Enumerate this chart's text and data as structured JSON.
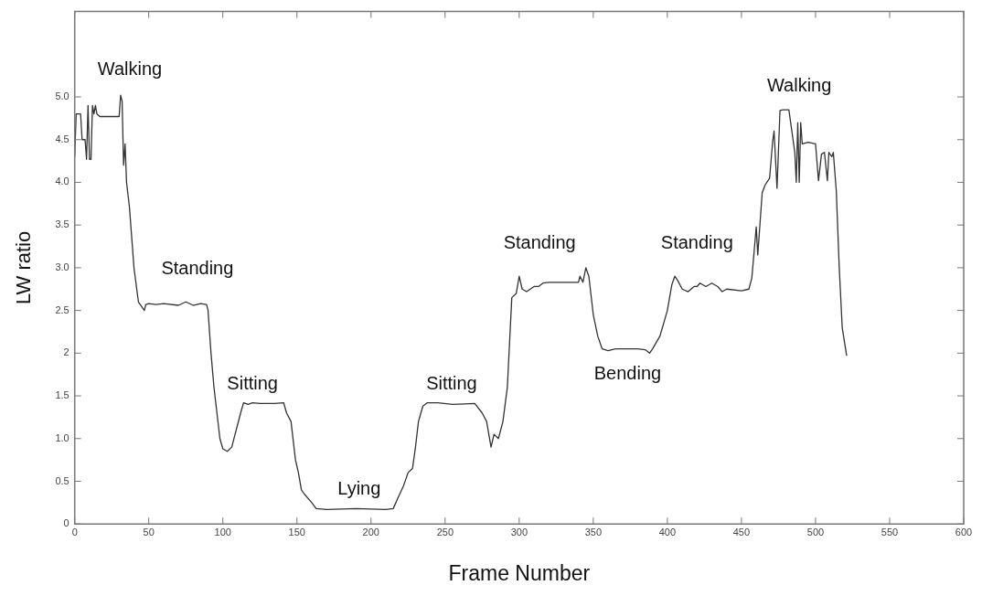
{
  "chart_data": {
    "type": "line",
    "xlabel": "Frame Number",
    "ylabel": "LW ratio",
    "xlim": [
      0,
      600
    ],
    "xticks": [
      0,
      50,
      100,
      150,
      200,
      250,
      300,
      350,
      400,
      450,
      500,
      550,
      600
    ],
    "ylim": [
      0,
      6
    ],
    "yticks": [
      0,
      0.5,
      {
        "value": 1,
        "label": "1.0"
      },
      1.5,
      2,
      2.5,
      {
        "value": 3,
        "label": "3.0"
      },
      3.5,
      {
        "value": 4,
        "label": "4.0"
      },
      4.5,
      {
        "value": 5,
        "label": "5.0"
      }
    ],
    "grid": false,
    "legend": false,
    "marker": "none",
    "line_style": "solid",
    "series": [
      {
        "color": "#333333",
        "x": [
          0,
          1,
          4,
          5,
          7,
          8,
          9,
          10,
          11,
          12,
          13,
          14,
          15,
          17,
          30,
          31,
          32,
          33,
          34,
          35,
          37,
          40,
          43,
          45,
          47,
          48,
          50,
          55,
          60,
          70,
          75,
          80,
          85,
          89,
          90,
          92,
          94,
          96,
          98,
          100,
          103,
          106,
          109,
          112,
          114,
          117,
          120,
          125,
          135,
          141,
          143,
          146,
          149,
          151,
          153,
          155,
          160,
          163,
          170,
          190,
          210,
          215,
          218,
          222,
          225,
          228,
          230,
          232,
          235,
          238,
          245,
          255,
          270,
          275,
          278,
          281,
          283,
          286,
          289,
          292,
          294,
          295,
          298,
          300,
          302,
          305,
          310,
          313,
          316,
          320,
          340,
          341,
          343,
          345,
          347,
          350,
          353,
          356,
          360,
          365,
          380,
          385,
          388,
          390,
          395,
          400,
          403,
          405,
          407,
          410,
          414,
          418,
          420,
          422,
          426,
          430,
          434,
          437,
          440,
          450,
          455,
          457,
          460,
          461,
          464,
          466,
          469,
          471,
          472,
          474,
          476,
          478,
          482,
          484,
          486,
          487,
          488,
          489,
          490,
          491,
          495,
          500,
          502,
          504,
          506,
          508,
          509,
          511,
          512,
          514,
          516,
          518,
          521
        ],
        "values": [
          4.3,
          4.8,
          4.8,
          4.5,
          4.5,
          4.27,
          4.9,
          4.27,
          4.27,
          4.9,
          4.8,
          4.9,
          4.8,
          4.77,
          4.77,
          5.02,
          4.95,
          4.2,
          4.45,
          4.0,
          3.7,
          3.0,
          2.6,
          2.55,
          2.5,
          2.57,
          2.58,
          2.57,
          2.58,
          2.56,
          2.6,
          2.56,
          2.58,
          2.57,
          2.5,
          2.0,
          1.6,
          1.3,
          1.0,
          0.88,
          0.85,
          0.9,
          1.1,
          1.3,
          1.42,
          1.4,
          1.42,
          1.41,
          1.41,
          1.42,
          1.3,
          1.2,
          0.75,
          0.6,
          0.4,
          0.35,
          0.25,
          0.18,
          0.17,
          0.18,
          0.17,
          0.18,
          0.3,
          0.45,
          0.6,
          0.65,
          0.9,
          1.2,
          1.38,
          1.42,
          1.42,
          1.4,
          1.41,
          1.3,
          1.2,
          0.9,
          1.05,
          1.0,
          1.2,
          1.6,
          2.3,
          2.65,
          2.7,
          2.9,
          2.75,
          2.72,
          2.78,
          2.78,
          2.82,
          2.83,
          2.83,
          2.9,
          2.83,
          3.0,
          2.9,
          2.45,
          2.2,
          2.05,
          2.03,
          2.05,
          2.05,
          2.04,
          2.0,
          2.05,
          2.2,
          2.5,
          2.8,
          2.9,
          2.85,
          2.75,
          2.72,
          2.78,
          2.78,
          2.82,
          2.78,
          2.82,
          2.78,
          2.72,
          2.75,
          2.73,
          2.75,
          2.88,
          3.48,
          3.15,
          3.88,
          3.97,
          4.05,
          4.47,
          4.6,
          3.93,
          4.84,
          4.85,
          4.85,
          4.6,
          4.35,
          4.0,
          4.7,
          4.0,
          4.7,
          4.45,
          4.47,
          4.45,
          4.02,
          4.33,
          4.35,
          4.02,
          4.35,
          4.3,
          4.35,
          3.9,
          3.0,
          2.3,
          1.97
        ]
      }
    ],
    "annotations": [
      "Walking",
      "Standing",
      "Sitting",
      "Lying",
      "Sitting",
      "Standing",
      "Bending",
      "Standing",
      "Walking"
    ]
  }
}
